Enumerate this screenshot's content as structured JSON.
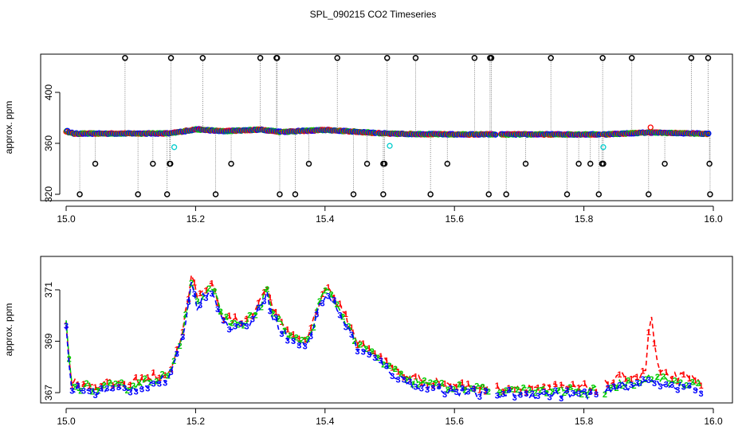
{
  "title": "SPL_090215  CO2 Timeseries",
  "colors": {
    "series1": "#ff0000",
    "series2": "#00cc00",
    "series3": "#0000ff",
    "outlier": "#000000",
    "flagged": "#00cccc",
    "guide": "#666666"
  },
  "chart_data": [
    {
      "type": "scatter",
      "panel": "top",
      "title": "SPL_090215  CO2 Timeseries",
      "xlabel": "",
      "ylabel": "approx. ppm",
      "xlim": [
        15.0,
        16.0
      ],
      "ylim": [
        315,
        430
      ],
      "xticks": [
        "15.0",
        "15.2",
        "15.4",
        "15.6",
        "15.8",
        "16.0"
      ],
      "yticks": [
        "320",
        "360",
        "400"
      ],
      "ytick_values": [
        320,
        360,
        400
      ],
      "xtick_values": [
        15.0,
        15.2,
        15.4,
        15.6,
        15.8,
        16.0
      ],
      "series_baseline": [
        [
          15.0,
          369.5
        ],
        [
          15.01,
          367.6
        ],
        [
          15.16,
          367.8
        ],
        [
          15.2,
          371.0
        ],
        [
          15.24,
          369.5
        ],
        [
          15.3,
          370.8
        ],
        [
          15.33,
          369.0
        ],
        [
          15.4,
          370.5
        ],
        [
          15.5,
          367.5
        ],
        [
          15.6,
          367.0
        ],
        [
          15.83,
          367.0
        ],
        [
          15.9,
          368.5
        ],
        [
          15.99,
          367.5
        ]
      ],
      "gaps": [
        [
          15.33,
          15.335
        ],
        [
          15.478,
          15.483
        ],
        [
          15.665,
          15.67
        ],
        [
          15.824,
          15.829
        ]
      ],
      "outliers_high": [
        15.091,
        15.162,
        15.211,
        15.3,
        15.325,
        15.326,
        15.419,
        15.496,
        15.54,
        15.631,
        15.655,
        15.657,
        15.749,
        15.829,
        15.874,
        15.966,
        15.992
      ],
      "outliers_low": [
        15.021,
        15.111,
        15.156,
        15.231,
        15.33,
        15.354,
        15.444,
        15.49,
        15.563,
        15.653,
        15.68,
        15.774,
        15.823,
        15.9,
        15.995
      ],
      "outliers_mid": [
        15.045,
        15.134,
        15.16,
        15.161,
        15.255,
        15.375,
        15.465,
        15.49,
        15.492,
        15.589,
        15.71,
        15.792,
        15.81,
        15.828,
        15.83,
        15.925,
        15.994
      ],
      "high_value": 427,
      "low_value": 320,
      "mid_value": 344,
      "flagged_points": [
        [
          15.167,
          357
        ],
        [
          15.5,
          358
        ],
        [
          15.83,
          357
        ]
      ]
    },
    {
      "type": "line",
      "panel": "bottom",
      "xlabel": "",
      "ylabel": "approx. ppm",
      "xlim": [
        15.0,
        16.0
      ],
      "ylim": [
        366.6,
        372.3
      ],
      "xticks": [
        "15.0",
        "15.2",
        "15.4",
        "15.6",
        "15.8",
        "16.0"
      ],
      "yticks": [
        "367",
        "369",
        "371"
      ],
      "ytick_values": [
        367,
        369,
        371
      ],
      "xtick_values": [
        15.0,
        15.2,
        15.4,
        15.6,
        15.8,
        16.0
      ],
      "series": [
        {
          "name": "1",
          "color": "#ff0000",
          "markers": "1"
        },
        {
          "name": "2",
          "color": "#00cc00",
          "markers": "2"
        },
        {
          "name": "3",
          "color": "#0000ff",
          "markers": "3"
        }
      ],
      "profile": [
        [
          15.0,
          369.6
        ],
        [
          15.003,
          369.2
        ],
        [
          15.005,
          367.8
        ],
        [
          15.008,
          367.2
        ],
        [
          15.05,
          367.1
        ],
        [
          15.1,
          367.2
        ],
        [
          15.13,
          367.4
        ],
        [
          15.16,
          367.6
        ],
        [
          15.17,
          368.3
        ],
        [
          15.18,
          369.3
        ],
        [
          15.19,
          370.6
        ],
        [
          15.196,
          371.8
        ],
        [
          15.2,
          370.3
        ],
        [
          15.21,
          370.7
        ],
        [
          15.22,
          371.0
        ],
        [
          15.23,
          370.9
        ],
        [
          15.24,
          369.8
        ],
        [
          15.26,
          369.6
        ],
        [
          15.28,
          369.7
        ],
        [
          15.3,
          370.3
        ],
        [
          15.31,
          371.1
        ],
        [
          15.316,
          370.2
        ],
        [
          15.33,
          369.6
        ],
        [
          15.35,
          369.0
        ],
        [
          15.37,
          368.9
        ],
        [
          15.38,
          369.4
        ],
        [
          15.39,
          370.3
        ],
        [
          15.4,
          370.9
        ],
        [
          15.41,
          370.7
        ],
        [
          15.43,
          369.8
        ],
        [
          15.45,
          368.8
        ],
        [
          15.47,
          368.5
        ],
        [
          15.5,
          367.9
        ],
        [
          15.52,
          367.5
        ],
        [
          15.55,
          367.3
        ],
        [
          15.6,
          367.1
        ],
        [
          15.65,
          367.0
        ],
        [
          15.7,
          367.0
        ],
        [
          15.75,
          367.0
        ],
        [
          15.8,
          367.0
        ],
        [
          15.83,
          367.0
        ],
        [
          15.86,
          367.3
        ],
        [
          15.89,
          367.4
        ],
        [
          15.9,
          367.5
        ],
        [
          15.95,
          367.3
        ],
        [
          15.985,
          367.1
        ]
      ],
      "red_spike": [
        [
          15.895,
          367.6
        ],
        [
          15.903,
          370.2
        ],
        [
          15.908,
          369.0
        ],
        [
          15.915,
          367.8
        ]
      ],
      "gaps": [
        [
          15.655,
          15.665
        ],
        [
          15.82,
          15.83
        ]
      ]
    }
  ]
}
